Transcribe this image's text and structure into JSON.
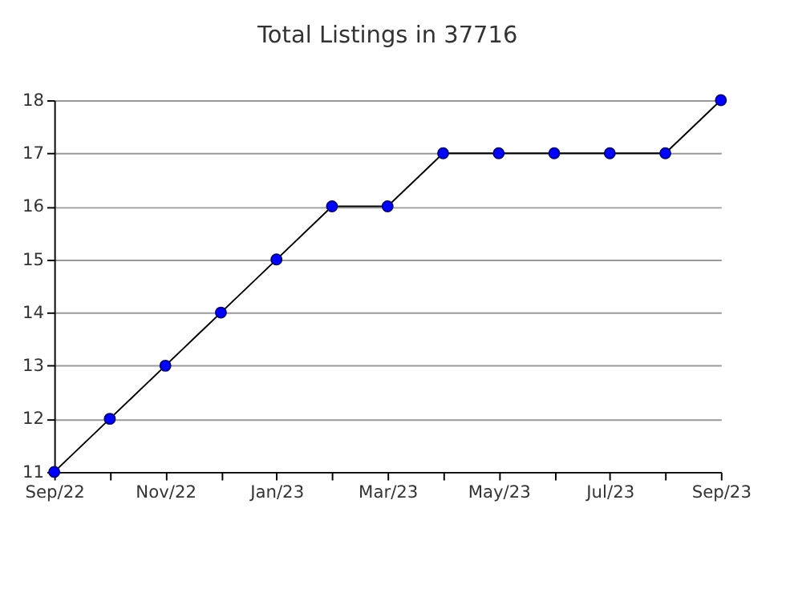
{
  "chart_data": {
    "type": "line",
    "title": "Total Listings in 37716",
    "categories": [
      "Sep/22",
      null,
      "Nov/22",
      null,
      "Jan/23",
      null,
      "Mar/23",
      null,
      "May/23",
      null,
      "Jul/23",
      null,
      "Sep/23"
    ],
    "series": [
      {
        "color": "#0000ff",
        "values": [
          11,
          12,
          13,
          14,
          15,
          16,
          16,
          17,
          17,
          17,
          17,
          17,
          18
        ]
      }
    ],
    "ylim": [
      11,
      18
    ],
    "yticks": [
      11,
      12,
      13,
      14,
      15,
      16,
      17,
      18
    ],
    "grid": "y",
    "marker": "circle",
    "line_style": "solid"
  }
}
